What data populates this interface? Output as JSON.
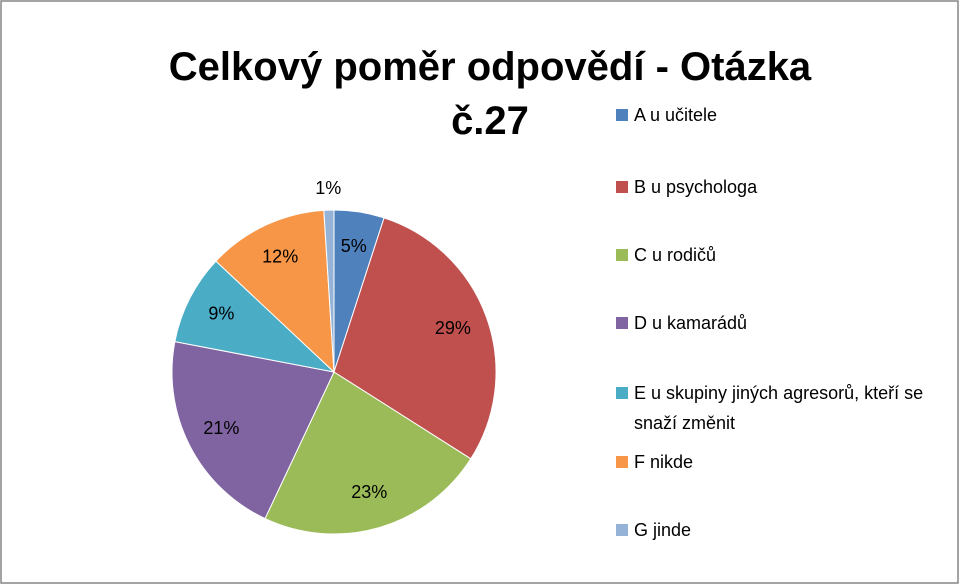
{
  "chart_data": {
    "type": "pie",
    "title": "Celkový poměr odpovědí - Otázka č.27",
    "categories": [
      "A u učitele",
      "B u psychologa",
      "C u rodičů",
      "D u kamarádů",
      "E u  skupiny jiných agresorů, kteří se snaží změnit",
      "F nikde",
      "G jinde"
    ],
    "values": [
      5,
      29,
      23,
      21,
      9,
      12,
      1
    ],
    "value_labels": [
      "5%",
      "29%",
      "23%",
      "21%",
      "9%",
      "12%",
      "1%"
    ],
    "colors": [
      "#4f81bd",
      "#c0504d",
      "#9bbb59",
      "#8064a2",
      "#4bacc6",
      "#f79646",
      "#95b3d7"
    ],
    "legend": "right"
  }
}
